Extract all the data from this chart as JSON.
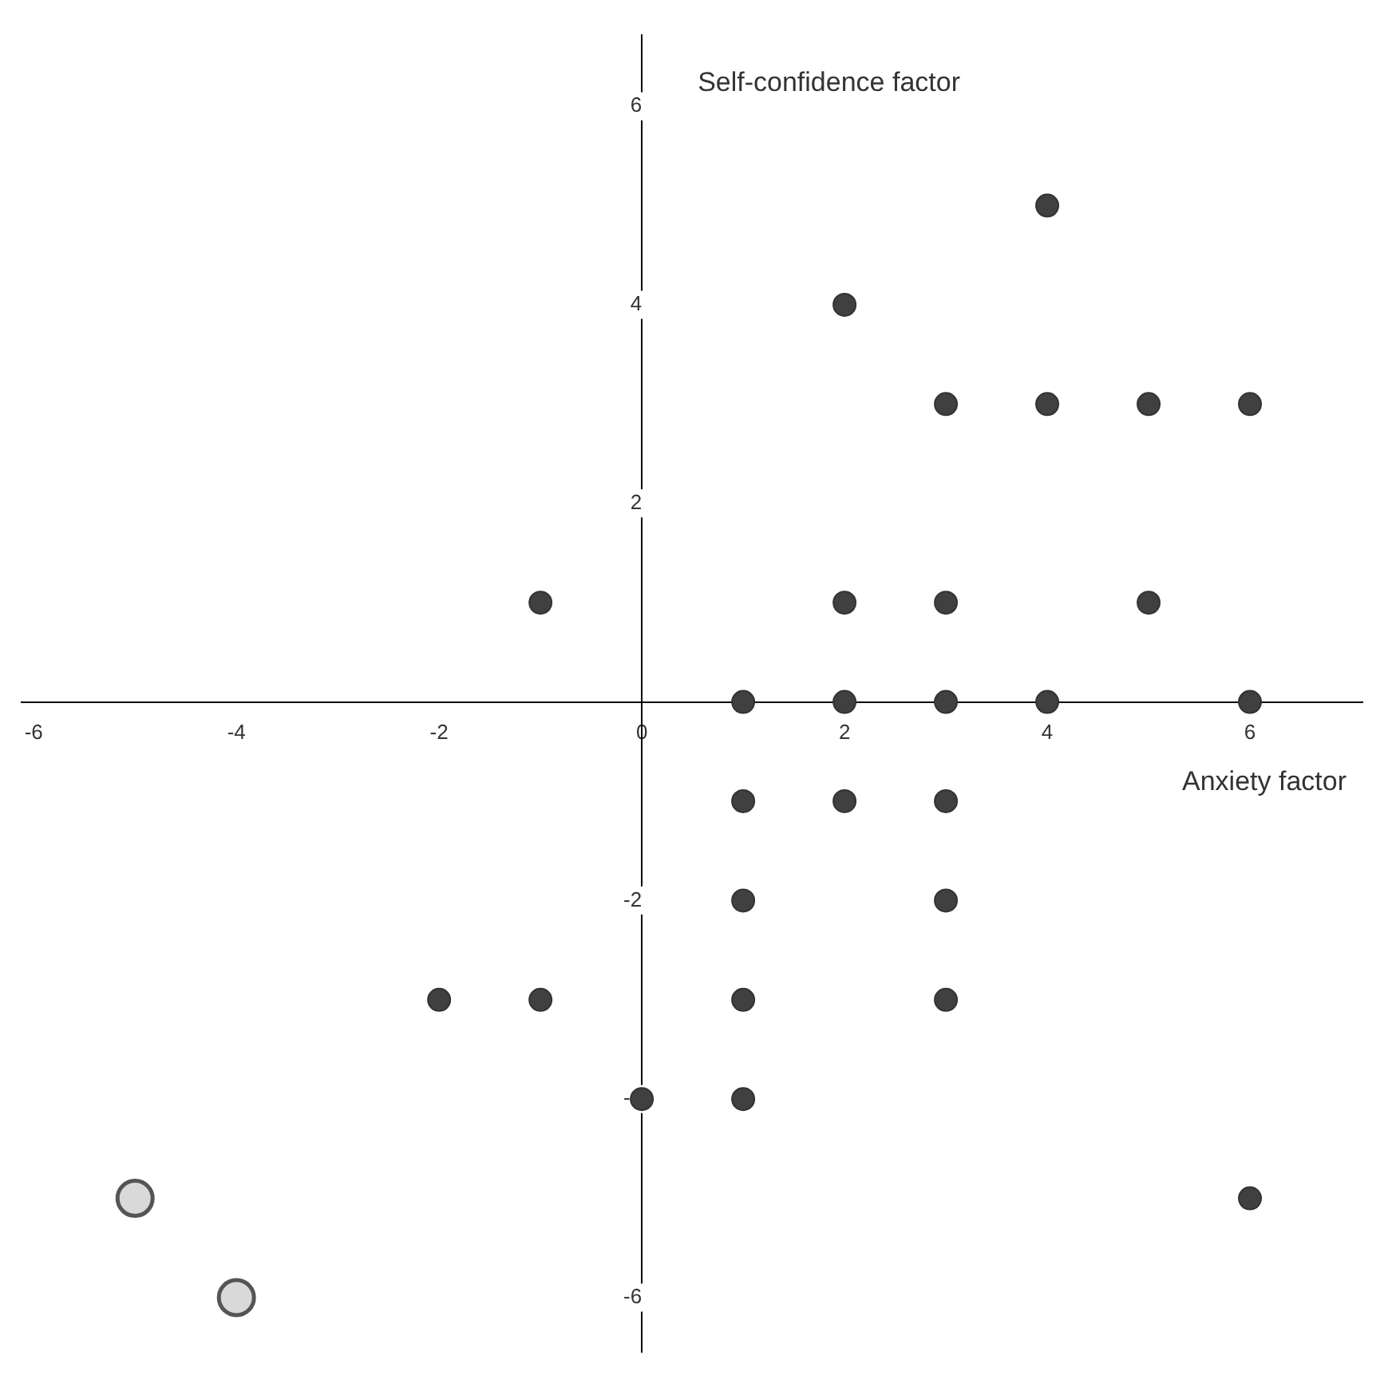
{
  "chart_data": {
    "type": "scatter",
    "xlabel": "Anxiety factor",
    "ylabel": "Self-confidence factor",
    "series": [
      {
        "color": "#404040",
        "x": [
          4,
          2,
          3,
          4,
          5,
          6,
          -1,
          2,
          3,
          5,
          1,
          2,
          3,
          4,
          6,
          1,
          2,
          3,
          1,
          3,
          -2,
          -1,
          1,
          3,
          0,
          1,
          6
        ],
        "values": [
          5,
          4,
          3,
          3,
          3,
          3,
          1,
          1,
          1,
          1,
          0,
          0,
          0,
          0,
          0,
          -1,
          -1,
          -1,
          -2,
          -2,
          -3,
          -3,
          -3,
          -3,
          -4,
          -4,
          -5
        ]
      },
      {
        "color": "#d9d9d9",
        "x": [
          -5,
          -4
        ],
        "values": [
          -5,
          -6
        ]
      }
    ],
    "xlim": [
      -6.12,
      7.11
    ],
    "ylim": [
      -6.55,
      6.72
    ],
    "xticks": [
      -6,
      -4,
      -2,
      0,
      2,
      4,
      6
    ],
    "yticks": [
      -6,
      -4,
      -2,
      2,
      4,
      6
    ],
    "marker": "circle",
    "grid": false,
    "legend": false
  }
}
